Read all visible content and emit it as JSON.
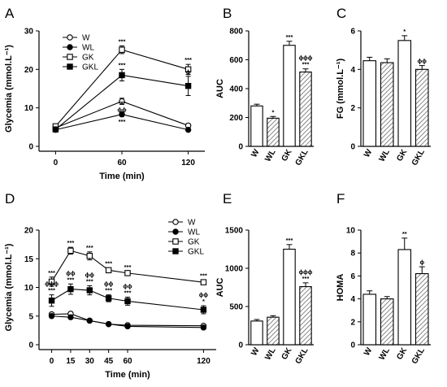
{
  "chart_data": [
    {
      "panel": "A",
      "type": "line",
      "xlabel": "Time (min)",
      "ylabel": "Glycemia (mmol.L⁻¹)",
      "x": [
        0,
        60,
        120
      ],
      "xlim": [
        -15,
        135
      ],
      "ylim": [
        0,
        30
      ],
      "yticks": [
        0,
        10,
        20,
        30
      ],
      "legend_position": "top-left",
      "series": [
        {
          "name": "W",
          "marker": "circle-open",
          "values": [
            4.8,
            11.7,
            5.4
          ],
          "errors": [
            0.4,
            0.8,
            0.4
          ],
          "annotations": [
            "",
            "***\nϕϕ",
            ""
          ]
        },
        {
          "name": "WL",
          "marker": "circle-filled",
          "values": [
            4.3,
            8.3,
            4.3
          ],
          "errors": [
            0.3,
            0.5,
            0.3
          ],
          "annotations": [
            "",
            "***",
            ""
          ]
        },
        {
          "name": "GK",
          "marker": "square-open",
          "values": [
            5.2,
            25.1,
            20.0
          ],
          "errors": [
            0.5,
            1.0,
            1.3
          ],
          "annotations": [
            "",
            "***",
            "***"
          ]
        },
        {
          "name": "GKL",
          "marker": "square-filled",
          "values": [
            4.4,
            18.5,
            15.7
          ],
          "errors": [
            0.4,
            1.5,
            2.5
          ],
          "annotations": [
            "",
            "***",
            "ϕ"
          ]
        }
      ]
    },
    {
      "panel": "B",
      "type": "bar",
      "ylabel": "AUC",
      "categories": [
        "W",
        "WL",
        "GK",
        "GKL"
      ],
      "values": [
        280,
        195,
        700,
        515
      ],
      "errors": [
        12,
        12,
        28,
        22
      ],
      "hatched": [
        false,
        true,
        false,
        true
      ],
      "annotations": [
        "",
        "*",
        "***",
        "ϕϕϕ\n***"
      ],
      "ylim": [
        0,
        800
      ],
      "yticks": [
        0,
        200,
        400,
        600,
        800
      ]
    },
    {
      "panel": "C",
      "type": "bar",
      "ylabel": "FG (mmol.L⁻¹)",
      "categories": [
        "W",
        "WL",
        "GK",
        "GKL"
      ],
      "values": [
        4.45,
        4.35,
        5.5,
        4.0
      ],
      "errors": [
        0.18,
        0.2,
        0.25,
        0.2
      ],
      "hatched": [
        false,
        true,
        false,
        true
      ],
      "annotations": [
        "",
        "",
        "*",
        "ϕϕ"
      ],
      "ylim": [
        0,
        6
      ],
      "yticks": [
        0,
        2,
        4,
        6
      ]
    },
    {
      "panel": "D",
      "type": "line",
      "xlabel": "Time (min)",
      "ylabel": "Glycemia (mmol.L⁻¹)",
      "x": [
        0,
        15,
        30,
        45,
        60,
        120
      ],
      "xlim": [
        -10,
        130
      ],
      "ylim": [
        0,
        20
      ],
      "yticks": [
        0,
        5,
        10,
        15,
        20
      ],
      "legend_position": "top-right",
      "series": [
        {
          "name": "W",
          "marker": "circle-open",
          "values": [
            5.3,
            5.4,
            4.2,
            3.6,
            3.4,
            3.3
          ],
          "errors": [
            0.3,
            0.3,
            0.2,
            0.2,
            0.2,
            0.2
          ],
          "annotations": [
            "",
            "",
            "",
            "",
            "",
            ""
          ]
        },
        {
          "name": "WL",
          "marker": "circle-filled",
          "values": [
            5.0,
            4.8,
            4.2,
            3.6,
            3.2,
            3.0
          ],
          "errors": [
            0.3,
            0.3,
            0.2,
            0.2,
            0.2,
            0.2
          ],
          "annotations": [
            "",
            "",
            "",
            "",
            "",
            ""
          ]
        },
        {
          "name": "GK",
          "marker": "square-open",
          "values": [
            11.0,
            16.4,
            15.5,
            13.0,
            12.5,
            10.9
          ],
          "errors": [
            0.8,
            0.6,
            0.7,
            0.4,
            0.3,
            0.4
          ],
          "annotations": [
            "***",
            "***",
            "***",
            "***",
            "***",
            "***"
          ]
        },
        {
          "name": "GKL",
          "marker": "square-filled",
          "values": [
            7.7,
            9.7,
            9.5,
            8.1,
            7.6,
            6.1
          ],
          "errors": [
            1.0,
            0.9,
            0.8,
            0.6,
            0.7,
            0.7
          ],
          "annotations": [
            "ϕϕϕ\n***",
            "ϕϕ\n***",
            "ϕϕ\n***",
            "ϕϕ\n***",
            "ϕϕ\n***",
            "ϕϕ\n*"
          ]
        }
      ]
    },
    {
      "panel": "E",
      "type": "bar",
      "ylabel": "AUC",
      "categories": [
        "W",
        "WL",
        "GK",
        "GKL"
      ],
      "values": [
        310,
        360,
        1250,
        760
      ],
      "errors": [
        20,
        20,
        60,
        50
      ],
      "hatched": [
        false,
        true,
        false,
        true
      ],
      "annotations": [
        "",
        "",
        "***",
        "ϕϕϕ\n***"
      ],
      "ylim": [
        0,
        1500
      ],
      "yticks": [
        0,
        500,
        1000,
        1500
      ]
    },
    {
      "panel": "F",
      "type": "bar",
      "ylabel": "HOMA",
      "categories": [
        "W",
        "WL",
        "GK",
        "GKL"
      ],
      "values": [
        4.4,
        4.0,
        8.3,
        6.2
      ],
      "errors": [
        0.3,
        0.2,
        1.0,
        0.6
      ],
      "hatched": [
        false,
        true,
        false,
        true
      ],
      "annotations": [
        "",
        "",
        "**",
        "ϕ"
      ],
      "ylim": [
        0,
        10
      ],
      "yticks": [
        0,
        2,
        4,
        6,
        8,
        10
      ]
    }
  ]
}
